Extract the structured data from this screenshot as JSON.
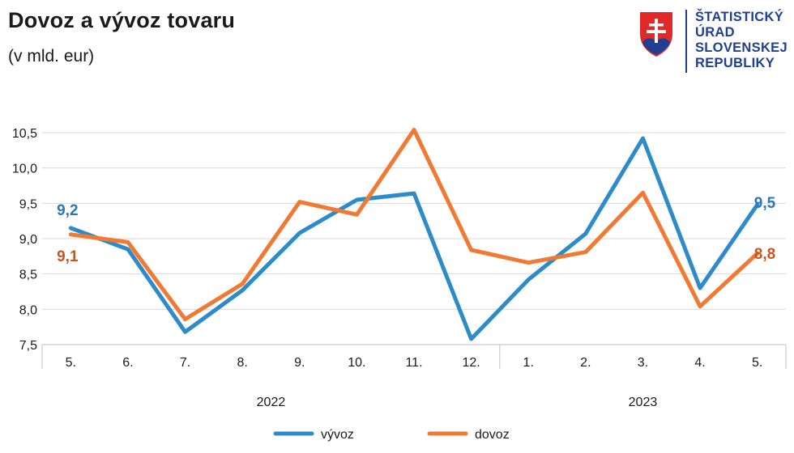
{
  "header": {
    "title": "Dovoz a vývoz tovaru",
    "subtitle": "(v mld. eur)"
  },
  "logo": {
    "lines": [
      "ŠTATISTICKÝ",
      "ÚRAD",
      "SLOVENSKEJ",
      "REPUBLIKY"
    ]
  },
  "colors": {
    "export": "#2e8bc9",
    "import": "#f07a33",
    "export_label": "#2a79b4",
    "import_label": "#c9541d",
    "grid": "#d9d9d9",
    "logo_blue": "#1f3f93",
    "logo_red": "#e02a2a"
  },
  "chart_data": {
    "type": "line",
    "categories": [
      "5.",
      "6.",
      "7.",
      "8.",
      "9.",
      "10.",
      "11.",
      "12.",
      "1.",
      "2.",
      "3.",
      "4.",
      "5."
    ],
    "groups": [
      {
        "label": "2022",
        "from": 0,
        "to": 7
      },
      {
        "label": "2023",
        "from": 8,
        "to": 12
      }
    ],
    "series": [
      {
        "key": "export",
        "name": "vývoz",
        "values": [
          9.15,
          8.85,
          7.68,
          8.27,
          9.08,
          9.55,
          9.64,
          7.58,
          8.42,
          9.07,
          10.42,
          8.3,
          9.48
        ]
      },
      {
        "key": "import",
        "name": "dovoz",
        "values": [
          9.06,
          8.95,
          7.86,
          8.36,
          9.52,
          9.34,
          10.54,
          8.84,
          8.66,
          8.81,
          9.65,
          8.04,
          8.79
        ]
      }
    ],
    "start_labels": {
      "export": "9,2",
      "import": "9,1"
    },
    "end_labels": {
      "export": "9,5",
      "import": "8,8"
    },
    "ylim": [
      7.5,
      10.5
    ],
    "yticks": [
      {
        "value": 7.5,
        "label": "7,5"
      },
      {
        "value": 8.0,
        "label": "8,0"
      },
      {
        "value": 8.5,
        "label": "8,5"
      },
      {
        "value": 9.0,
        "label": "9,0"
      },
      {
        "value": 9.5,
        "label": "9,5"
      },
      {
        "value": 10.0,
        "label": "10,0"
      },
      {
        "value": 10.5,
        "label": "10,5"
      }
    ],
    "grid": true,
    "legend_position": "bottom"
  }
}
